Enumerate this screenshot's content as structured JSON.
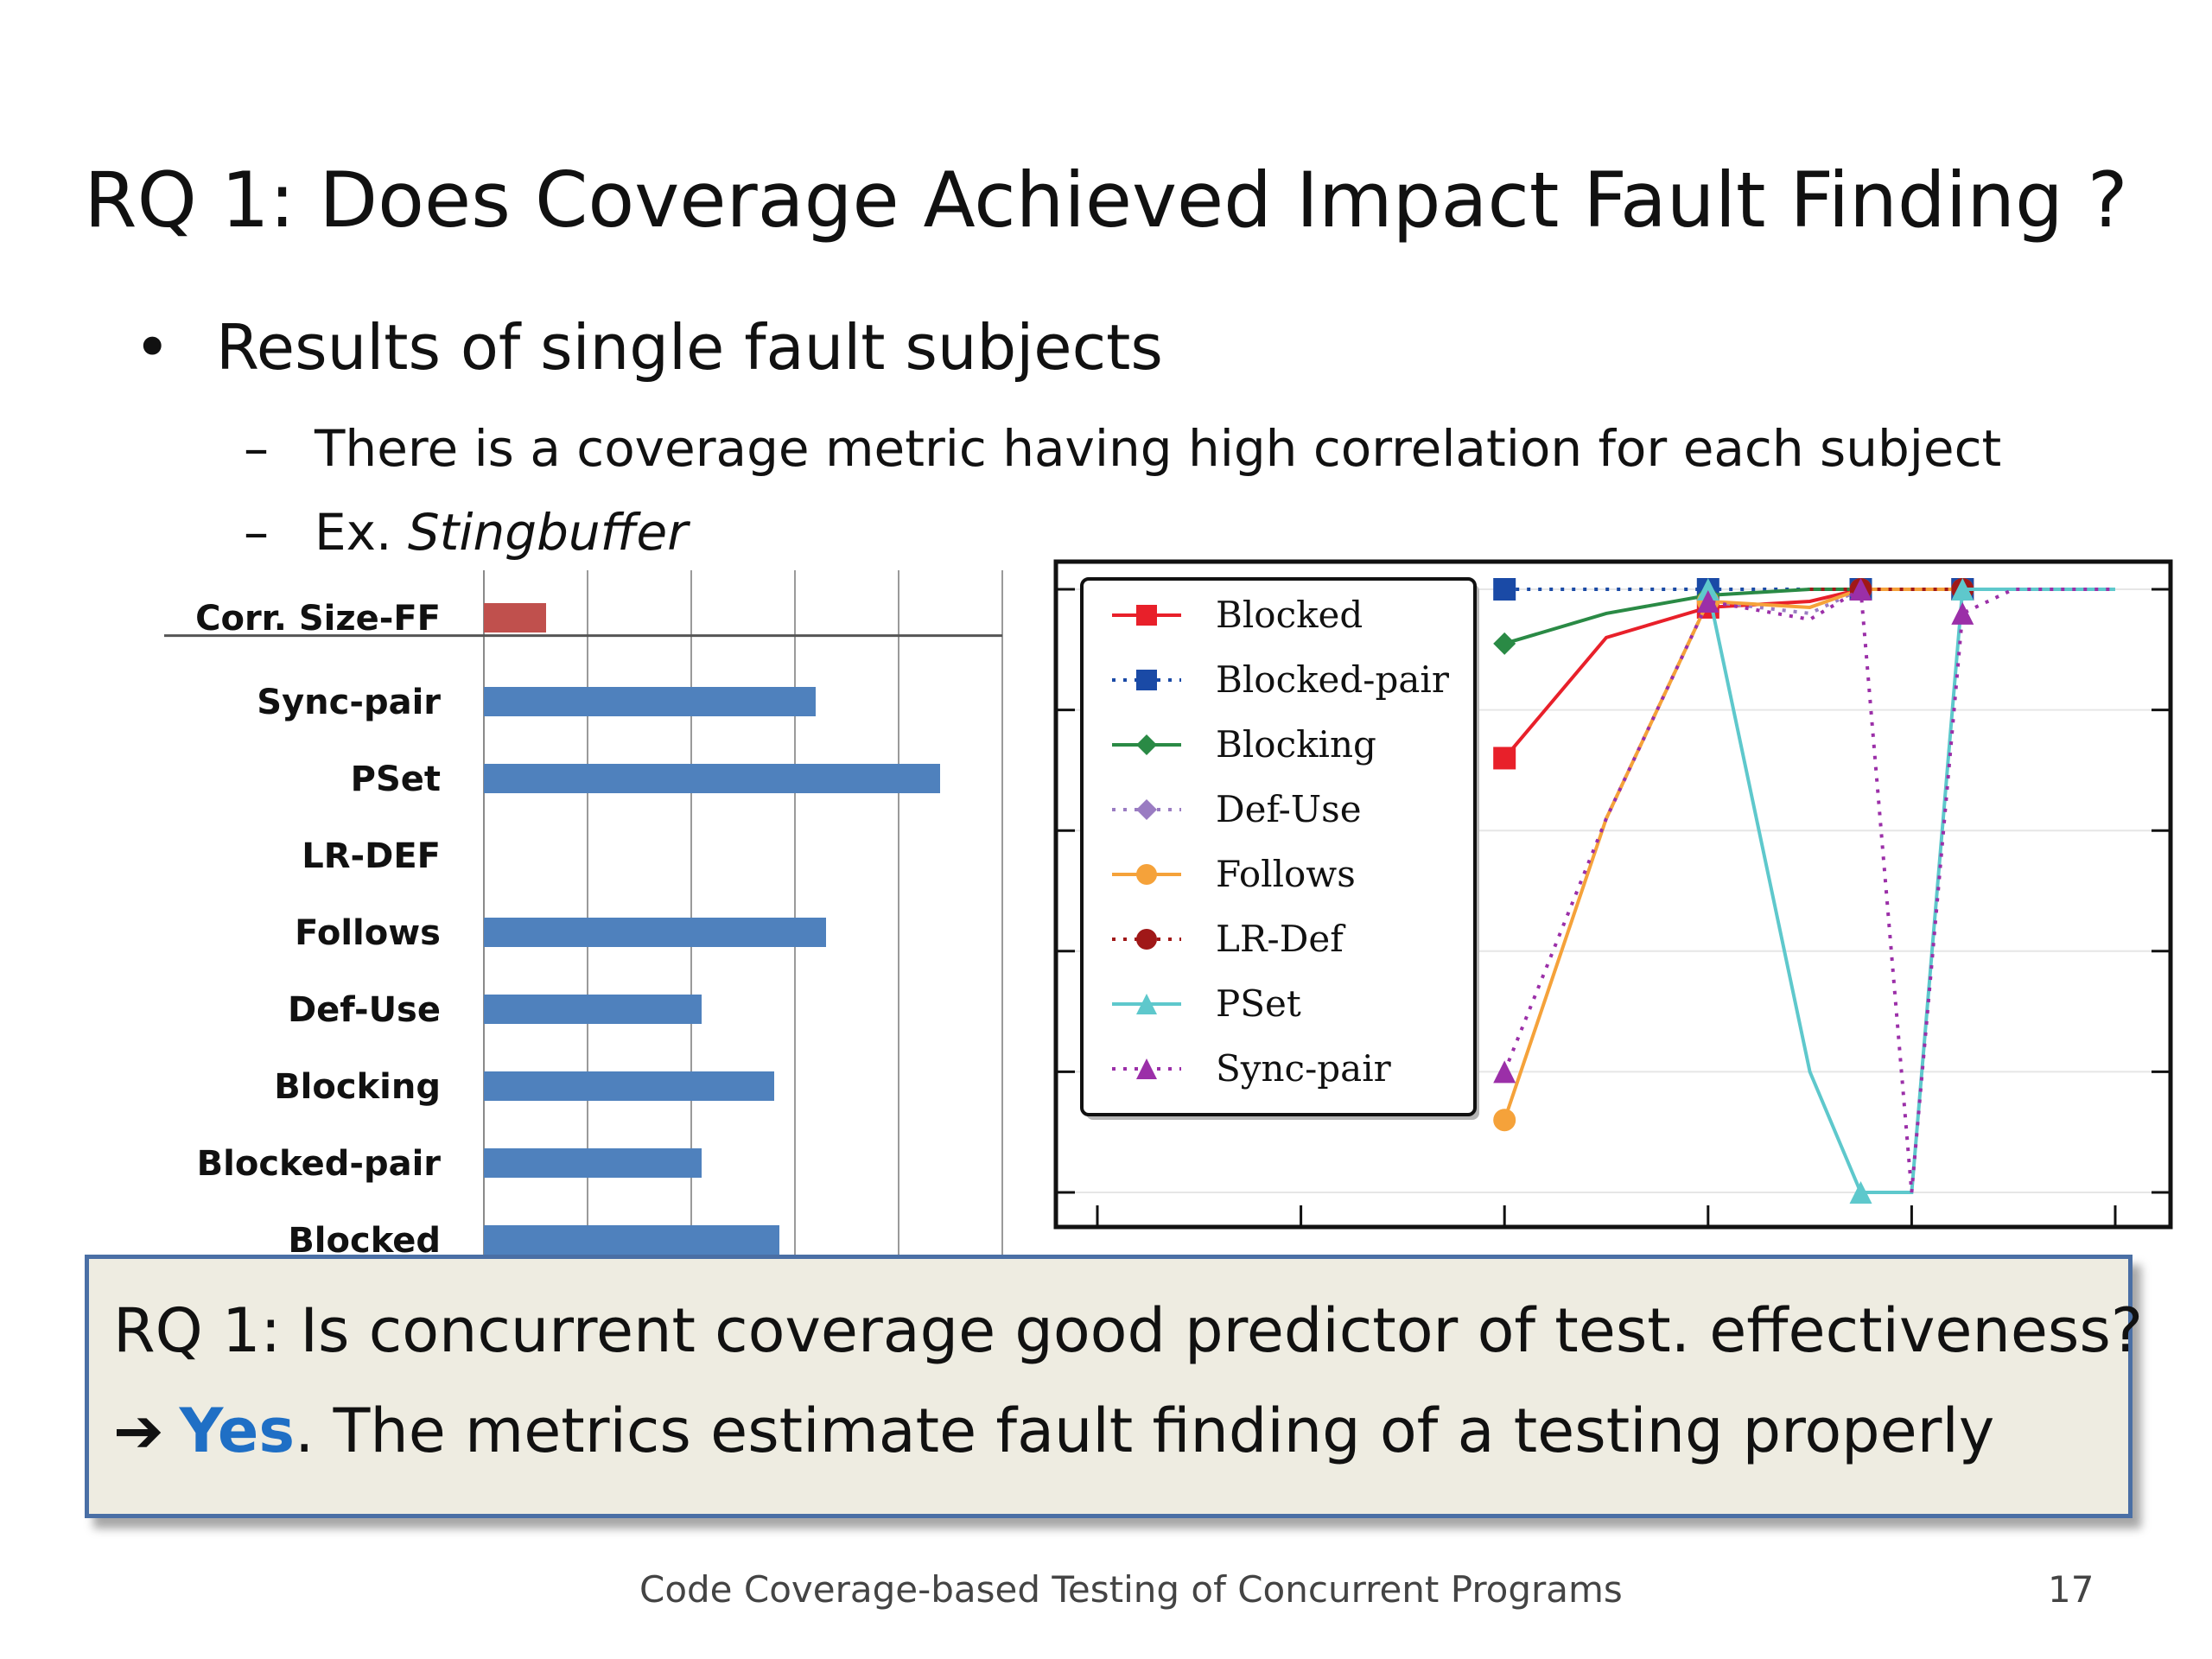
{
  "slide": {
    "title": "RQ 1: Does Coverage Achieved Impact Fault Finding ?",
    "bullet_symbol": "•",
    "bullet": "Results of single fault subjects",
    "dash": "–",
    "sub1": "There is a coverage metric having high correlation for each subject",
    "sub2_prefix": "Ex. ",
    "sub2_italic": "Stingbuffer"
  },
  "chart_data": [
    {
      "type": "bar",
      "orientation": "horizontal",
      "categories": [
        "Corr. Size-FF",
        "Sync-pair",
        "PSet",
        "LR-DEF",
        "Follows",
        "Def-Use",
        "Blocking",
        "Blocked-pair",
        "Blocked"
      ],
      "values": [
        0.06,
        0.32,
        0.44,
        0.0,
        0.33,
        0.21,
        0.28,
        0.21,
        0.285
      ],
      "colors": [
        "#c0504d",
        "#4f81bd",
        "#4f81bd",
        "#4f81bd",
        "#4f81bd",
        "#4f81bd",
        "#4f81bd",
        "#4f81bd",
        "#4f81bd"
      ],
      "xlim": [
        0,
        0.5
      ],
      "grid": true
    },
    {
      "type": "line",
      "x": [
        0,
        20,
        40,
        50,
        60,
        70,
        75,
        80,
        85,
        90,
        95,
        100
      ],
      "legend_position": "top-left",
      "series": [
        {
          "name": "Blocked",
          "color": "#e8202a",
          "dash": "solid",
          "marker": "square",
          "values": [
            null,
            null,
            0.72,
            0.92,
            0.97,
            0.98,
            1.0,
            1.0,
            1.0,
            1.0,
            1.0,
            1.0
          ]
        },
        {
          "name": "Blocked-pair",
          "color": "#1a4aa6",
          "dash": "dotted",
          "marker": "square",
          "values": [
            null,
            null,
            1.0,
            1.0,
            1.0,
            1.0,
            1.0,
            1.0,
            1.0,
            1.0,
            1.0,
            1.0
          ]
        },
        {
          "name": "Blocking",
          "color": "#2a8a45",
          "dash": "solid",
          "marker": "diamond",
          "values": [
            null,
            null,
            0.91,
            0.96,
            0.99,
            1.0,
            1.0,
            1.0,
            1.0,
            1.0,
            1.0,
            1.0
          ]
        },
        {
          "name": "Def-Use",
          "color": "#9a7cc2",
          "dash": "dotted",
          "marker": "diamond",
          "values": [
            null,
            null,
            null,
            0.62,
            0.98,
            0.96,
            1.0,
            1.0,
            1.0,
            1.0,
            1.0,
            1.0
          ]
        },
        {
          "name": "Follows",
          "color": "#f5a23a",
          "dash": "solid",
          "marker": "circle",
          "values": [
            null,
            null,
            0.12,
            0.62,
            0.98,
            0.97,
            1.0,
            1.0,
            1.0,
            1.0,
            1.0,
            1.0
          ]
        },
        {
          "name": "LR-Def",
          "color": "#a01818",
          "dash": "dotted",
          "marker": "circle",
          "values": [
            null,
            null,
            null,
            null,
            null,
            1.0,
            1.0,
            1.0,
            1.0,
            1.0,
            1.0,
            1.0
          ]
        },
        {
          "name": "PSet",
          "color": "#5ec8cc",
          "dash": "solid",
          "marker": "triangle",
          "values": [
            null,
            null,
            null,
            null,
            1.0,
            0.2,
            0.0,
            0.0,
            1.0,
            1.0,
            1.0,
            1.0
          ]
        },
        {
          "name": "Sync-pair",
          "color": "#9b2fa8",
          "dash": "dotted",
          "marker": "triangle",
          "values": [
            null,
            null,
            0.2,
            0.62,
            0.98,
            0.95,
            1.0,
            0.0,
            0.96,
            1.0,
            1.0,
            1.0
          ]
        }
      ]
    }
  ],
  "callout": {
    "line1": "RQ 1: Is concurrent coverage good predictor of test. effectiveness?",
    "arrow": "➔",
    "yes": "Yes",
    "line2_rest": ". The metrics estimate fault finding of a testing properly"
  },
  "footer": {
    "text": "Code Coverage-based Testing of Concurrent Programs",
    "page": "17"
  }
}
